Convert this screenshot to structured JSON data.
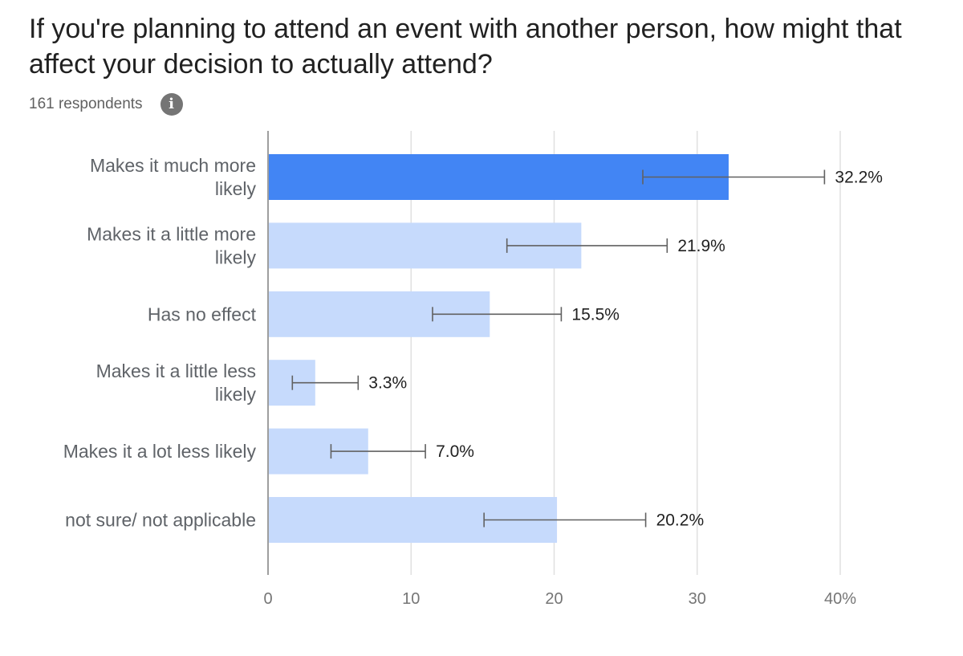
{
  "title": "If you're planning to attend an event with another person, how might that affect your decision to actually attend?",
  "respondents": "161 respondents",
  "info_icon": "info-icon",
  "colors": {
    "highlight_bar": "#4285f4",
    "bar": "#c6dafc",
    "error_bar": "#616161",
    "grid": "#e0e0e0",
    "axis": "#9e9e9e",
    "category_text": "#5f6368",
    "tick_text": "#757575",
    "value_text": "#212121"
  },
  "chart_data": {
    "type": "bar",
    "orientation": "horizontal",
    "categories": [
      [
        "Makes it much more",
        "likely"
      ],
      [
        "Makes it a little more",
        "likely"
      ],
      [
        "Has no effect"
      ],
      [
        "Makes it a little less",
        "likely"
      ],
      [
        "Makes it a lot less likely"
      ],
      [
        "not sure/ not applicable"
      ]
    ],
    "values": [
      32.2,
      21.9,
      15.5,
      3.3,
      7.0,
      20.2
    ],
    "value_labels": [
      "32.2%",
      "21.9%",
      "15.5%",
      "3.3%",
      "7.0%",
      "20.2%"
    ],
    "error_bars": [
      [
        26.2,
        38.9
      ],
      [
        16.7,
        27.9
      ],
      [
        11.5,
        20.5
      ],
      [
        1.7,
        6.3
      ],
      [
        4.4,
        11.0
      ],
      [
        15.1,
        26.4
      ]
    ],
    "highlight_index": 0,
    "xlim": [
      0,
      40
    ],
    "xticks": [
      0,
      10,
      20,
      30,
      40
    ],
    "xtick_labels": [
      "0",
      "10",
      "20",
      "30",
      "40%"
    ],
    "grid": true
  }
}
